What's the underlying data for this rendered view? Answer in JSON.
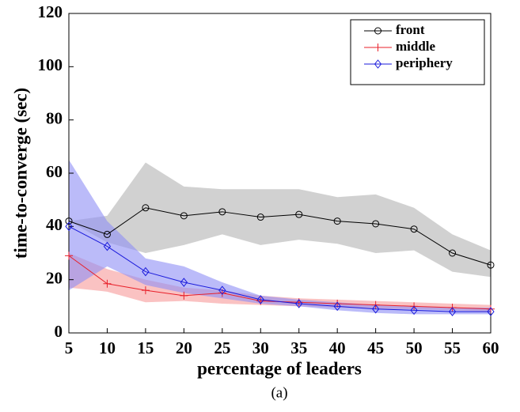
{
  "chart_data": {
    "type": "line",
    "x_label": "percentage of leaders",
    "y_label": "time-to-converge (sec)",
    "caption": "(a)",
    "x": [
      5,
      10,
      15,
      20,
      25,
      30,
      35,
      40,
      45,
      50,
      55,
      60
    ],
    "xlim": [
      5,
      60
    ],
    "xticks": [
      5,
      10,
      15,
      20,
      25,
      30,
      35,
      40,
      45,
      50,
      55,
      60
    ],
    "ylim": [
      0,
      120
    ],
    "yticks": [
      0,
      20,
      40,
      60,
      80,
      100,
      120
    ],
    "legend": "upper right",
    "series": [
      {
        "name": "front",
        "color": "#000000",
        "band_color": "#b3b3b3",
        "marker": "circle",
        "values": [
          42,
          37,
          47,
          44,
          45.5,
          43.5,
          44.5,
          42,
          41,
          39,
          30,
          25.5
        ],
        "upper": [
          42,
          44,
          64,
          55,
          54,
          54,
          54,
          51,
          52,
          47,
          37,
          31
        ],
        "lower": [
          42,
          34,
          30,
          33,
          37,
          33,
          35,
          33.5,
          30,
          31,
          23,
          21
        ]
      },
      {
        "name": "middle",
        "color": "#e8202a",
        "band_color": "#f79a9a",
        "marker": "plus",
        "values": [
          29,
          18.5,
          16,
          14,
          15,
          12,
          11.5,
          11,
          10.5,
          10,
          9.5,
          9
        ],
        "upper": [
          30,
          24,
          20,
          17,
          16,
          14,
          13,
          12.5,
          12,
          11.5,
          11,
          10.5
        ],
        "lower": [
          17,
          15.5,
          11.5,
          12,
          11,
          10.5,
          10,
          9.5,
          9,
          9,
          8.5,
          8
        ]
      },
      {
        "name": "periphery",
        "color": "#1a1adb",
        "band_color": "#8e8ef5",
        "marker": "diamond",
        "values": [
          40,
          32.5,
          23,
          19,
          16,
          12.5,
          11,
          10,
          9,
          8.5,
          8,
          8
        ],
        "upper": [
          65,
          42,
          28,
          25,
          19,
          14,
          12.5,
          11.5,
          10.5,
          10,
          9.5,
          9.5
        ],
        "lower": [
          16,
          25,
          18,
          15,
          13,
          11,
          10,
          8.5,
          7.5,
          7,
          7,
          7
        ]
      }
    ]
  }
}
